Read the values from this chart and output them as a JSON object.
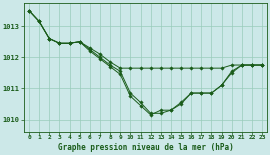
{
  "xlabel": "Graphe pression niveau de la mer (hPa)",
  "bg_color": "#cce8e8",
  "grid_color": "#99ccbb",
  "line_color": "#1a5c1a",
  "marker_color": "#1a5c1a",
  "text_color": "#1a5c1a",
  "xlim": [
    -0.5,
    23.5
  ],
  "ylim": [
    1009.6,
    1013.75
  ],
  "yticks": [
    1010,
    1011,
    1012,
    1013
  ],
  "xticks": [
    0,
    1,
    2,
    3,
    4,
    5,
    6,
    7,
    8,
    9,
    10,
    11,
    12,
    13,
    14,
    15,
    16,
    17,
    18,
    19,
    20,
    21,
    22,
    23
  ],
  "series": [
    [
      1013.5,
      1013.15,
      1012.6,
      1012.45,
      1012.45,
      1012.5,
      1012.3,
      1012.1,
      1011.85,
      1011.65,
      1011.65,
      1011.65,
      1011.65,
      1011.65,
      1011.65,
      1011.65,
      1011.65,
      1011.65,
      1011.65,
      1011.65,
      1011.75,
      1011.75,
      1011.75,
      1011.75
    ],
    [
      1013.5,
      1013.15,
      1012.6,
      1012.45,
      1012.45,
      1012.5,
      1012.25,
      1012.0,
      1011.75,
      1011.55,
      1010.85,
      1010.55,
      1010.2,
      1010.2,
      1010.3,
      1010.55,
      1010.85,
      1010.85,
      1010.85,
      1011.1,
      1011.55,
      1011.75,
      1011.75,
      1011.75
    ],
    [
      1013.5,
      1013.15,
      1012.6,
      1012.45,
      1012.45,
      1012.5,
      1012.2,
      1011.95,
      1011.7,
      1011.45,
      1010.75,
      1010.45,
      1010.15,
      1010.3,
      1010.3,
      1010.5,
      1010.85,
      1010.85,
      1010.85,
      1011.1,
      1011.5,
      1011.75,
      1011.75,
      1011.75
    ]
  ]
}
